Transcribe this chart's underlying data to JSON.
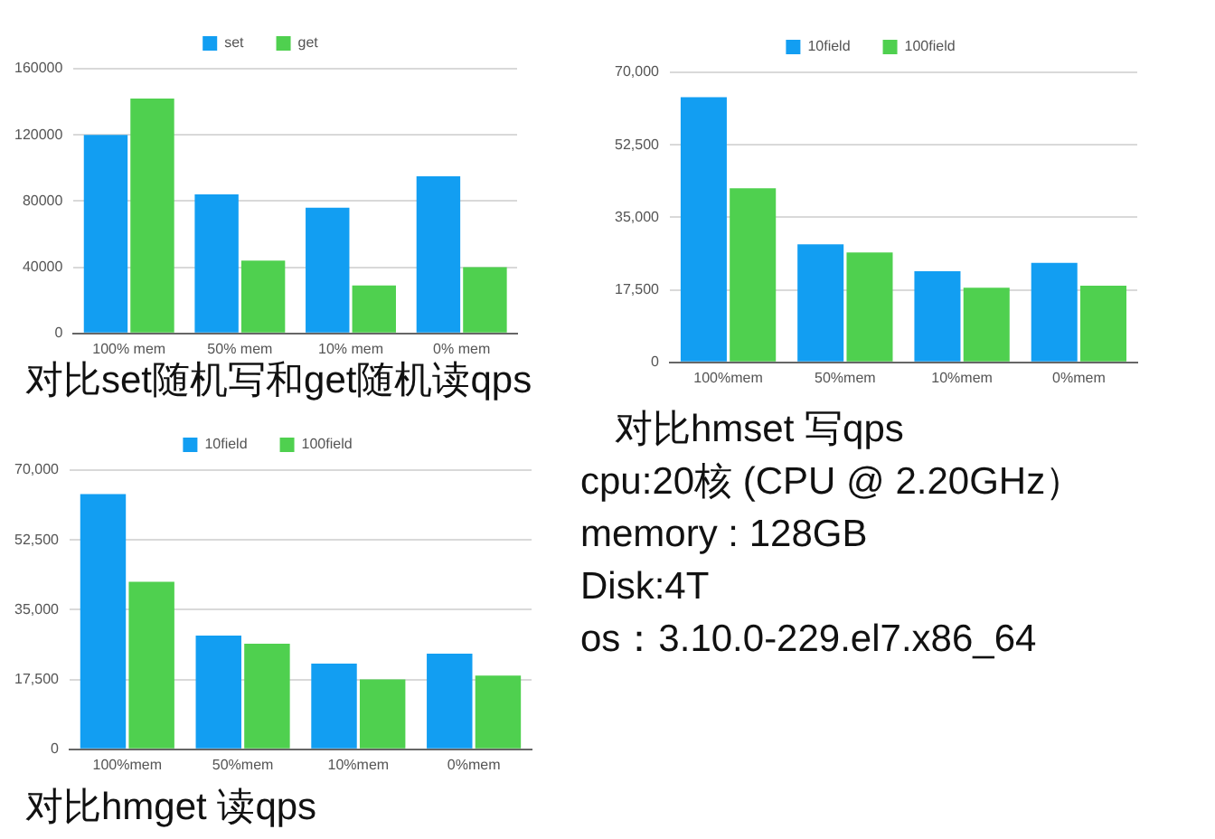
{
  "chart_data": [
    {
      "type": "bar",
      "categories": [
        "100% mem",
        "50% mem",
        "10% mem",
        "0% mem"
      ],
      "series": [
        {
          "name": "set",
          "color": "#129ef2",
          "values": [
            120000,
            84000,
            76000,
            95000
          ]
        },
        {
          "name": "get",
          "color": "#4fd04f",
          "values": [
            142000,
            44000,
            29000,
            40000
          ]
        }
      ],
      "ylim": [
        0,
        160000
      ],
      "yticks": [
        0,
        40000,
        80000,
        120000,
        160000
      ],
      "grid": "y",
      "legend": "top",
      "annotations": [
        "对比set随机写和get随机读qps"
      ]
    },
    {
      "type": "bar",
      "categories": [
        "100%mem",
        "50%mem",
        "10%mem",
        "0%mem"
      ],
      "series": [
        {
          "name": "10field",
          "color": "#129ef2",
          "values": [
            64000,
            28500,
            22000,
            24000
          ]
        },
        {
          "name": "100field",
          "color": "#4fd04f",
          "values": [
            42000,
            26500,
            18000,
            18500
          ]
        }
      ],
      "ylim": [
        0,
        70000
      ],
      "yticks": [
        0,
        {
          "value": 17500,
          "label": "17,500"
        },
        {
          "value": 35000,
          "label": "35,000"
        },
        {
          "value": 52500,
          "label": "52,500"
        },
        {
          "value": 70000,
          "label": "70,000"
        }
      ],
      "grid": "y",
      "legend": "top",
      "annotations": [
        "对比hmset 写qps"
      ]
    },
    {
      "type": "bar",
      "categories": [
        "100%mem",
        "50%mem",
        "10%mem",
        "0%mem"
      ],
      "series": [
        {
          "name": "10field",
          "color": "#129ef2",
          "values": [
            64000,
            28500,
            21500,
            24000
          ]
        },
        {
          "name": "100field",
          "color": "#4fd04f",
          "values": [
            42000,
            26500,
            17500,
            18500
          ]
        }
      ],
      "ylim": [
        0,
        70000
      ],
      "yticks": [
        0,
        {
          "value": 17500,
          "label": "17,500"
        },
        {
          "value": 35000,
          "label": "35,000"
        },
        {
          "value": 52500,
          "label": "52,500"
        },
        {
          "value": 70000,
          "label": "70,000"
        }
      ],
      "grid": "y",
      "legend": "top",
      "annotations": [
        "对比hmget 读qps"
      ]
    },
    {
      "type": "other",
      "annotations": [
        "cpu:20核 (CPU @ 2.20GHz）",
        "memory : 128GB",
        "Disk:4T",
        "os：3.10.0-229.el7.x86_64"
      ]
    }
  ]
}
